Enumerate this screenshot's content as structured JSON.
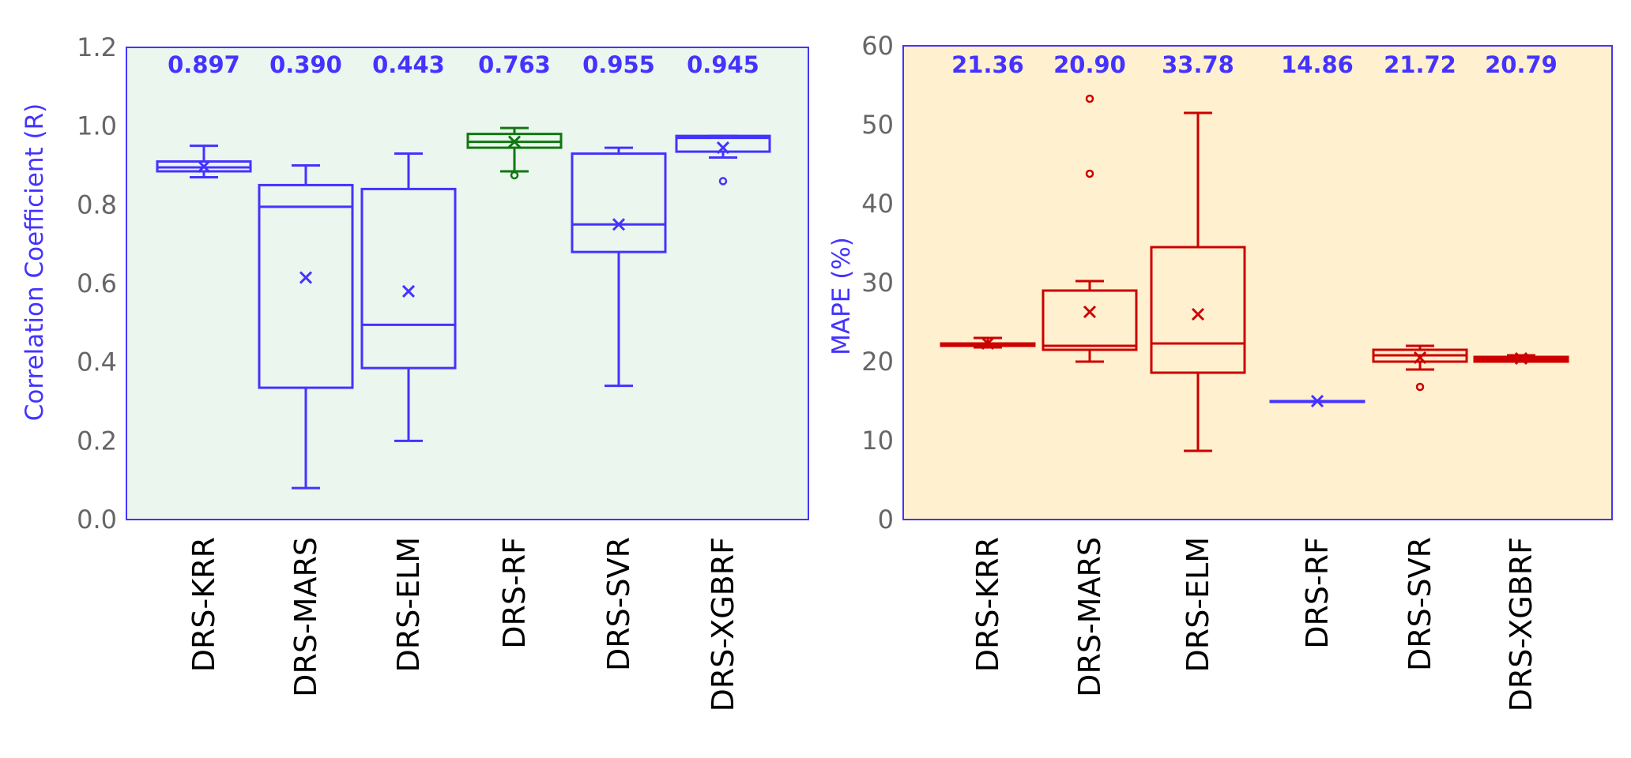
{
  "chart_data": [
    {
      "type": "box",
      "panel": "left",
      "ylabel": "Correlation Coefficient (R)",
      "ylim": [
        0.0,
        1.2
      ],
      "yticks": [
        "0.0",
        "0.2",
        "0.4",
        "0.6",
        "0.8",
        "1.0",
        "1.2"
      ],
      "ytick_values": [
        0.0,
        0.2,
        0.4,
        0.6,
        0.8,
        1.0,
        1.2
      ],
      "background": "#eaf6ee",
      "frame_color": "#4433ff",
      "ylabel_color": "#4433ff",
      "categories": [
        "DRS-KRR",
        "DRS-MARS",
        "DRS-ELM",
        "DRS-RF",
        "DRS-SVR",
        "DRS-XGBRF"
      ],
      "annotations": [
        "0.897",
        "0.390",
        "0.443",
        "0.763",
        "0.955",
        "0.945"
      ],
      "annotation_color": "#4433ff",
      "boxes": [
        {
          "whislo": 0.87,
          "q1": 0.885,
          "med": 0.895,
          "q3": 0.91,
          "whishi": 0.95,
          "mean": 0.897,
          "fliers": [],
          "color": "#4433ff"
        },
        {
          "whislo": 0.08,
          "q1": 0.335,
          "med": 0.795,
          "q3": 0.85,
          "whishi": 0.9,
          "mean": 0.615,
          "fliers": [],
          "color": "#4433ff"
        },
        {
          "whislo": 0.2,
          "q1": 0.385,
          "med": 0.495,
          "q3": 0.84,
          "whishi": 0.93,
          "mean": 0.58,
          "fliers": [],
          "color": "#4433ff"
        },
        {
          "whislo": 0.885,
          "q1": 0.945,
          "med": 0.96,
          "q3": 0.98,
          "whishi": 0.995,
          "mean": 0.96,
          "fliers": [
            0.875
          ],
          "color": "#117711"
        },
        {
          "whislo": 0.34,
          "q1": 0.68,
          "med": 0.75,
          "q3": 0.93,
          "whishi": 0.945,
          "mean": 0.75,
          "fliers": [],
          "color": "#4433ff"
        },
        {
          "whislo": 0.92,
          "q1": 0.935,
          "med": 0.97,
          "q3": 0.975,
          "whishi": 0.975,
          "mean": 0.945,
          "fliers": [
            0.86
          ],
          "color": "#4433ff"
        }
      ]
    },
    {
      "type": "box",
      "panel": "right",
      "ylabel": "MAPE (%)",
      "ylim": [
        0,
        60
      ],
      "yticks": [
        "0",
        "10",
        "20",
        "30",
        "40",
        "50",
        "60"
      ],
      "ytick_values": [
        0,
        10,
        20,
        30,
        40,
        50,
        60
      ],
      "background": "#fff0cf",
      "frame_color": "#4433ff",
      "ylabel_color": "#4433ff",
      "categories": [
        "DRS-KRR",
        "DRS-MARS",
        "DRS-ELM",
        "DRS-RF",
        "DRS-SVR",
        "DRS-XGBRF"
      ],
      "annotations": [
        "21.36",
        "20.90",
        "33.78",
        "14.86",
        "21.72",
        "20.79"
      ],
      "annotation_color": "#4433ff",
      "boxes": [
        {
          "whislo": 21.8,
          "q1": 22.0,
          "med": 22.2,
          "q3": 22.3,
          "whishi": 23.0,
          "mean": 22.3,
          "fliers": [],
          "color": "#cc0000"
        },
        {
          "whislo": 20.0,
          "q1": 21.5,
          "med": 22.0,
          "q3": 29.0,
          "whishi": 30.2,
          "mean": 26.3,
          "fliers": [
            43.8,
            53.3
          ],
          "color": "#cc0000"
        },
        {
          "whislo": 8.7,
          "q1": 18.6,
          "med": 22.3,
          "q3": 34.5,
          "whishi": 51.5,
          "mean": 26.0,
          "fliers": [],
          "color": "#cc0000"
        },
        {
          "whislo": 15.0,
          "q1": 15.0,
          "med": 15.0,
          "q3": 15.0,
          "whishi": 15.0,
          "mean": 15.0,
          "fliers": [],
          "color": "#4433ff"
        },
        {
          "whislo": 19.0,
          "q1": 20.0,
          "med": 20.8,
          "q3": 21.5,
          "whishi": 22.0,
          "mean": 20.5,
          "fliers": [
            16.8
          ],
          "color": "#cc0000"
        },
        {
          "whislo": 20.0,
          "q1": 20.0,
          "med": 20.3,
          "q3": 20.6,
          "whishi": 20.8,
          "mean": 20.4,
          "fliers": [],
          "color": "#cc0000"
        }
      ]
    }
  ]
}
